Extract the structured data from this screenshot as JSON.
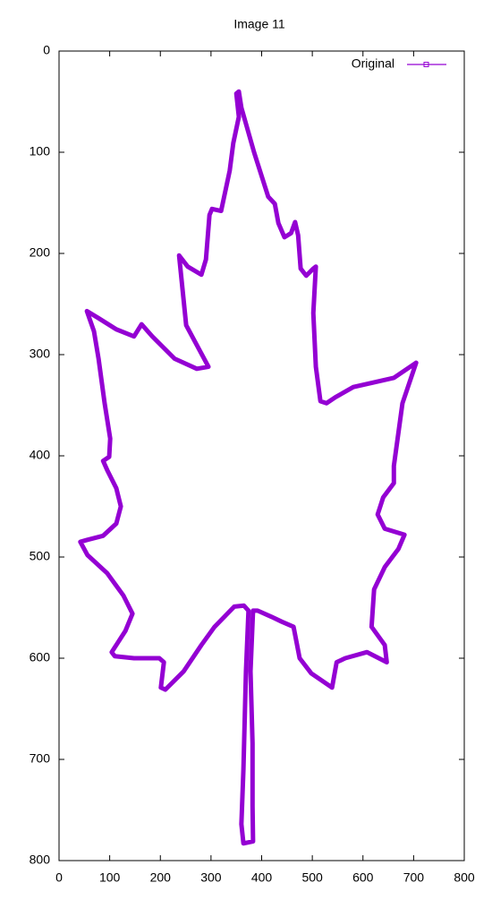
{
  "chart_data": {
    "type": "line",
    "title": "Image 11",
    "x": [
      346,
      307,
      281,
      246,
      210,
      201,
      207,
      198,
      148,
      110,
      104,
      131,
      145,
      127,
      95,
      56,
      42,
      56,
      87,
      113,
      122,
      113,
      95,
      87,
      99,
      101,
      90,
      78,
      69,
      55,
      78,
      113,
      148,
      163,
      184,
      228,
      272,
      295,
      251,
      237,
      254,
      281,
      290,
      297,
      302,
      320,
      337,
      344,
      355,
      350,
      355,
      360,
      385,
      413,
      426,
      433,
      445,
      458,
      466,
      472,
      477,
      488,
      502,
      507,
      502,
      507,
      516,
      528,
      546,
      581,
      625,
      661,
      705,
      678,
      661,
      661,
      640,
      629,
      643,
      682,
      670,
      643,
      622,
      617,
      643,
      647,
      608,
      565,
      548,
      539,
      498,
      475,
      463,
      440,
      419,
      392,
      383,
      378,
      382,
      382,
      383,
      364,
      360,
      364,
      369,
      374,
      365,
      346
    ],
    "series": [
      {
        "name": "Original",
        "color": "#9400d3",
        "values": [
          549,
          569,
          587,
          613,
          631,
          629,
          604,
          600,
          600,
          598,
          594,
          573,
          556,
          538,
          516,
          498,
          485,
          483,
          479,
          467,
          450,
          432,
          414,
          405,
          401,
          383,
          348,
          304,
          277,
          257,
          264,
          275,
          282,
          270,
          282,
          304,
          314,
          312,
          271,
          202,
          213,
          221,
          206,
          162,
          156,
          158,
          118,
          91,
          65,
          42,
          40,
          56,
          100,
          144,
          151,
          170,
          184,
          180,
          169,
          182,
          215,
          222,
          215,
          213,
          259,
          312,
          346,
          348,
          342,
          332,
          327,
          323,
          308,
          348,
          410,
          427,
          441,
          458,
          472,
          478,
          492,
          510,
          532,
          569,
          587,
          604,
          594,
          600,
          604,
          629,
          615,
          600,
          569,
          564,
          559,
          553,
          553,
          613,
          684,
          746,
          781,
          783,
          764,
          710,
          613,
          553,
          548,
          549
        ]
      }
    ],
    "xlim": [
      0,
      800
    ],
    "xticks": [
      0,
      100,
      200,
      300,
      400,
      500,
      600,
      700,
      800
    ],
    "ylim": [
      800,
      0
    ],
    "yticks": [
      0,
      100,
      200,
      300,
      400,
      500,
      600,
      700,
      800
    ],
    "legend": "top-right"
  }
}
